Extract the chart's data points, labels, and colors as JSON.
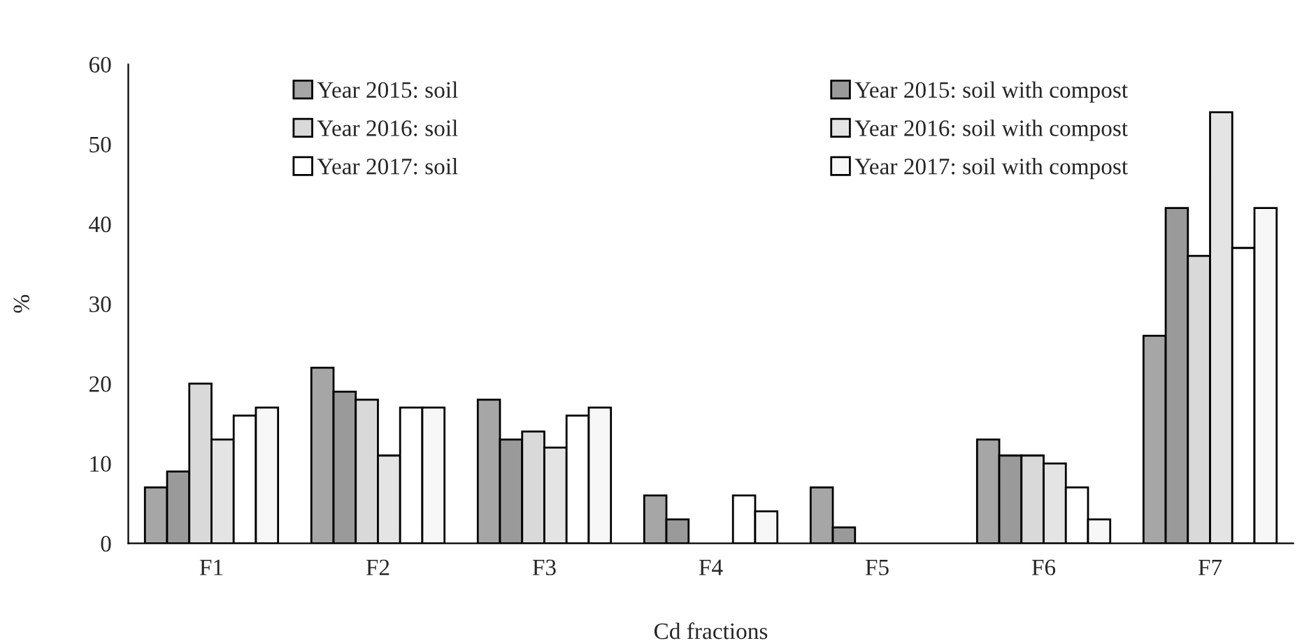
{
  "chart_data": {
    "type": "bar",
    "xlabel": "Cd fractions",
    "ylabel": "%",
    "categories": [
      "F1",
      "F2",
      "F3",
      "F4",
      "F5",
      "F6",
      "F7"
    ],
    "series": [
      {
        "name": "Year 2015: soil",
        "color": "#a6a6a6",
        "values": [
          7,
          22,
          18,
          6,
          7,
          13,
          26
        ]
      },
      {
        "name": "Year 2015: soil with compost",
        "color": "#9a9a9a",
        "values": [
          9,
          19,
          13,
          3,
          2,
          11,
          42
        ]
      },
      {
        "name": "Year 2016: soil",
        "color": "#d9d9d9",
        "values": [
          20,
          18,
          14,
          null,
          null,
          11,
          36
        ]
      },
      {
        "name": "Year 2016: soil with compost",
        "color": "#e4e4e4",
        "values": [
          13,
          11,
          12,
          null,
          null,
          10,
          54
        ]
      },
      {
        "name": "Year 2017: soil",
        "color": "#ffffff",
        "values": [
          16,
          17,
          16,
          6,
          null,
          7,
          37
        ]
      },
      {
        "name": "Year 2017: soil with compost",
        "color": "#f7f7f7",
        "values": [
          17,
          17,
          17,
          4,
          null,
          3,
          42
        ]
      }
    ],
    "ylim": [
      0,
      60
    ],
    "yticks": [
      0,
      10,
      20,
      30,
      40,
      50,
      60
    ],
    "grid": false,
    "legend": "top"
  }
}
